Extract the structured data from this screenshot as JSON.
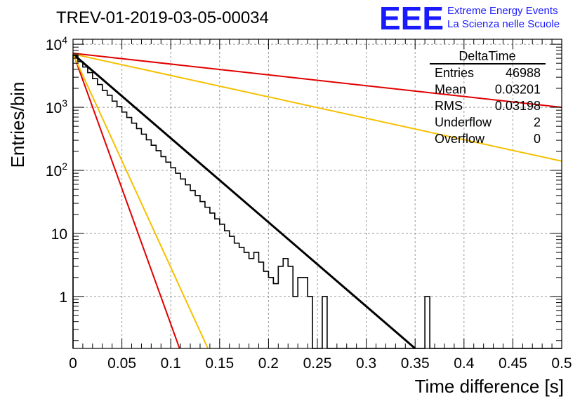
{
  "header": {
    "run_title": "TREV-01-2019-03-05-00034",
    "logo_text": "EEE",
    "logo_line1": "Extreme Energy Events",
    "logo_line2": "La Scienza nelle Scuole"
  },
  "stats_box": {
    "title": "DeltaTime",
    "rows": [
      {
        "label": "Entries",
        "value": "46988"
      },
      {
        "label": "Mean",
        "value": "0.03201"
      },
      {
        "label": "RMS",
        "value": "0.03198"
      },
      {
        "label": "Underflow",
        "value": "2"
      },
      {
        "label": "Overflow",
        "value": "0"
      }
    ]
  },
  "chart_data": {
    "type": "line",
    "title": "TREV-01-2019-03-05-00034",
    "xlabel": "Time difference [s]",
    "ylabel": "Entries/bin",
    "xlim": [
      0,
      0.5
    ],
    "ylim": [
      0.15,
      12000
    ],
    "y_scale": "log",
    "grid": true,
    "x_ticks": [
      0,
      0.05,
      0.1,
      0.15,
      0.2,
      0.25,
      0.3,
      0.35,
      0.4,
      0.45,
      0.5
    ],
    "x_tick_labels": [
      "0",
      "0.05",
      "0.1",
      "0.15",
      "0.2",
      "0.25",
      "0.3",
      "0.35",
      "0.4",
      "0.45",
      "0.5"
    ],
    "y_ticks": [
      1,
      10,
      100,
      1000,
      10000
    ],
    "y_tick_labels": [
      "1",
      "10",
      "10^2",
      "10^3",
      "10^4"
    ],
    "histogram": {
      "bin_width": 0.005,
      "counts": [
        6700,
        5300,
        4350,
        3550,
        2850,
        2300,
        1850,
        1550,
        1250,
        1030,
        840,
        690,
        560,
        460,
        375,
        305,
        250,
        205,
        165,
        135,
        110,
        90,
        73,
        59,
        48,
        40,
        32,
        26,
        21,
        17,
        14,
        11,
        9,
        7,
        6,
        5,
        4,
        5,
        3.5,
        2.5,
        2,
        1.6,
        3,
        4,
        3,
        1,
        2,
        2,
        1,
        0,
        0,
        1,
        0,
        0,
        0,
        0,
        0,
        0,
        0,
        0,
        0,
        0,
        0,
        0,
        0,
        0,
        0,
        0,
        0,
        0,
        0,
        0,
        1,
        0,
        0,
        0,
        0,
        0,
        0,
        0,
        0,
        0,
        0,
        0,
        0,
        0,
        0,
        0,
        0,
        0,
        0,
        0,
        0,
        0,
        0,
        0,
        0,
        0,
        0,
        0
      ]
    },
    "series": [
      {
        "color": "#000000",
        "x": [
          0,
          0.35
        ],
        "y": [
          7000,
          0.15
        ]
      },
      {
        "color": "#e00000",
        "x": [
          0,
          0.109
        ],
        "y": [
          7300,
          0.15
        ]
      },
      {
        "color": "#f5c000",
        "x": [
          0,
          0.138
        ],
        "y": [
          7000,
          0.15
        ]
      },
      {
        "color": "#e00000",
        "x": [
          0,
          0.5
        ],
        "y": [
          7200,
          1000
        ]
      },
      {
        "color": "#f5c000",
        "x": [
          0,
          0.5
        ],
        "y": [
          7000,
          140
        ]
      }
    ]
  }
}
